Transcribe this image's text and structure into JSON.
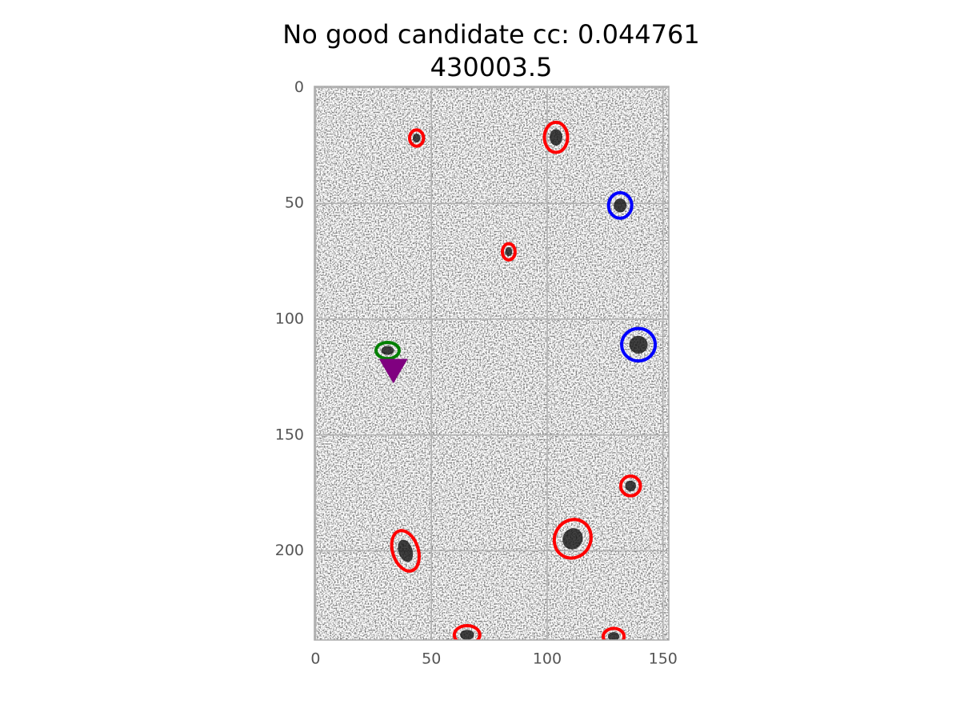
{
  "chart_data": {
    "type": "image",
    "title": [
      "No good candidate cc: 0.044761",
      "430003.5"
    ],
    "xlim": [
      -0.5,
      152.5
    ],
    "ylim": [
      238.5,
      -0.5
    ],
    "xticks": [
      0,
      50,
      100,
      150
    ],
    "yticks": [
      0,
      50,
      100,
      150,
      200
    ],
    "grid": true,
    "ellipses": [
      {
        "color": "#ff0000",
        "x": [
          43.6,
          103.8,
          83.4,
          136,
          38.8,
          111,
          65.4,
          128.7
        ],
        "y": [
          21.8,
          21.5,
          70.9,
          172,
          200,
          194.8,
          236.3,
          237
        ],
        "width": [
          6,
          10,
          5.5,
          8.5,
          11,
          15.5,
          11,
          9
        ],
        "height": [
          7,
          13,
          7,
          8.5,
          18,
          17,
          8,
          7
        ],
        "angle": [
          0,
          0,
          0,
          0,
          -18,
          30,
          0,
          0
        ]
      },
      {
        "color": "#0000ff",
        "x": [
          131.5,
          139.4
        ],
        "y": [
          50.9,
          111
        ],
        "width": [
          10,
          14.5
        ],
        "height": [
          11,
          14
        ],
        "angle": [
          0,
          0
        ]
      },
      {
        "color": "#008000",
        "x": [
          31.1
        ],
        "y": [
          113.5
        ],
        "width": [
          10
        ],
        "height": [
          7
        ],
        "angle": [
          0
        ]
      }
    ],
    "markers": {
      "color": "#800080",
      "marker": "v",
      "x": [
        33.6
      ],
      "y": [
        121.8
      ]
    }
  }
}
